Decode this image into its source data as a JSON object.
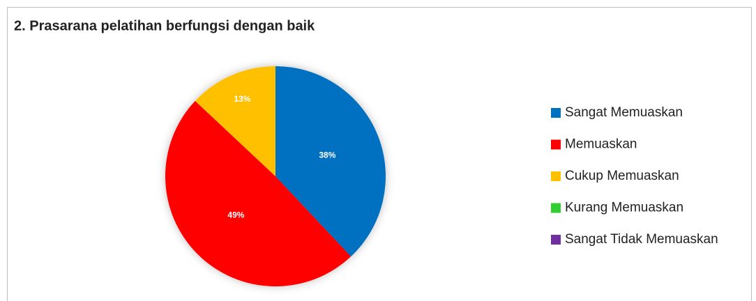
{
  "chart_data": {
    "type": "pie",
    "title": "2. Prasarana pelatihan berfungsi dengan baik",
    "categories": [
      "Sangat Memuaskan",
      "Memuaskan",
      "Cukup Memuaskan",
      "Kurang Memuaskan",
      "Sangat Tidak Memuaskan"
    ],
    "values": [
      38,
      49,
      13,
      0,
      0
    ],
    "value_labels": [
      "38%",
      "49%",
      "13%",
      null,
      null
    ],
    "colors": [
      "#0070c0",
      "#ff0000",
      "#ffc000",
      "#33cc33",
      "#7030a0"
    ],
    "legend": "right"
  }
}
